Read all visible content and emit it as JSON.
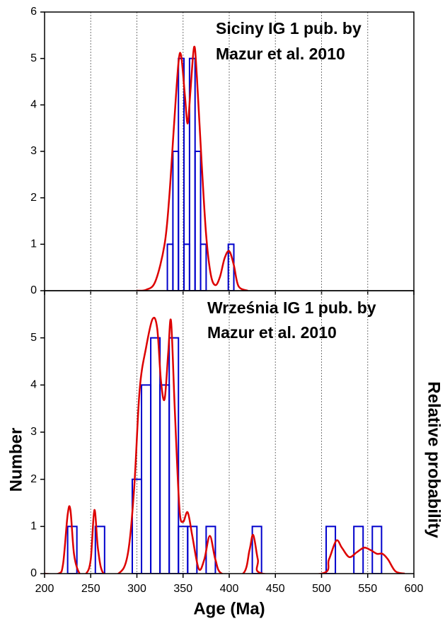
{
  "chart_data": [
    {
      "type": "histogram",
      "title_lines": [
        "Siciny IG 1 pub. by",
        "Mazur et al. 2010"
      ],
      "bins": [
        333,
        339,
        345,
        351,
        357,
        363,
        369,
        375,
        381,
        387,
        393,
        399,
        405
      ],
      "values": [
        1,
        3,
        5,
        1,
        5,
        3,
        1,
        0,
        0,
        0,
        0,
        1
      ],
      "color": "#0000cc",
      "curve": {
        "color": "#dd0000",
        "x": [
          300,
          310,
          320,
          330,
          335,
          340,
          345,
          348,
          352,
          355,
          358,
          362,
          365,
          370,
          375,
          380,
          385,
          390,
          395,
          400,
          405,
          410,
          420
        ],
        "y": [
          0,
          0.02,
          0.2,
          1.0,
          2.0,
          3.5,
          4.9,
          5.05,
          4.2,
          3.6,
          4.3,
          5.25,
          4.6,
          2.8,
          1.2,
          0.35,
          0.12,
          0.3,
          0.7,
          0.85,
          0.55,
          0.1,
          0
        ]
      },
      "xlim": [
        200,
        600
      ],
      "xticks": [
        200,
        250,
        300,
        350,
        400,
        450,
        500,
        550,
        600
      ],
      "ylim": [
        0,
        6
      ],
      "yticks": [
        0,
        1,
        2,
        3,
        4,
        5,
        6
      ],
      "grid": true
    },
    {
      "type": "histogram",
      "title_lines": [
        "Września IG 1 pub. by",
        "Mazur et al. 2010"
      ],
      "bins": [
        225,
        235,
        245,
        255,
        265,
        275,
        285,
        295,
        305,
        315,
        325,
        335,
        345,
        355,
        365,
        375,
        385,
        395,
        405,
        415,
        425,
        435,
        445,
        455,
        465,
        475,
        485,
        495,
        505,
        515,
        525,
        535,
        545,
        555,
        565,
        575
      ],
      "values": [
        1,
        0,
        0,
        1,
        0,
        0,
        0,
        2,
        4,
        5,
        4,
        5,
        1,
        1,
        0,
        1,
        0,
        0,
        0,
        0,
        1,
        0,
        0,
        0,
        0,
        0,
        0,
        0,
        1,
        0,
        0,
        1,
        0,
        1,
        0
      ],
      "color": "#0000cc",
      "curve": {
        "color": "#dd0000",
        "x": [
          200,
          215,
          220,
          225,
          228,
          232,
          238,
          245,
          250,
          254,
          258,
          264,
          280,
          290,
          297,
          303,
          310,
          317,
          322,
          326,
          330,
          334,
          337,
          341,
          346,
          350,
          355,
          360,
          367,
          373,
          379,
          385,
          392,
          415,
          422,
          426,
          431,
          436,
          500,
          508,
          516,
          522,
          530,
          538,
          546,
          553,
          560,
          566,
          572,
          580,
          590
        ],
        "y": [
          0,
          0,
          0.2,
          1.25,
          1.35,
          0.4,
          0,
          0,
          0.3,
          1.35,
          0.5,
          0,
          0,
          0.4,
          1.8,
          3.9,
          4.8,
          5.4,
          5.2,
          4.1,
          3.7,
          4.7,
          5.35,
          3.5,
          1.4,
          1.1,
          1.3,
          0.8,
          0.1,
          0.3,
          0.8,
          0.3,
          0,
          0,
          0.5,
          0.82,
          0.3,
          0,
          0,
          0.3,
          0.7,
          0.55,
          0.35,
          0.45,
          0.55,
          0.5,
          0.42,
          0.42,
          0.3,
          0.05,
          0
        ]
      },
      "xlim": [
        200,
        600
      ],
      "xticks": [
        200,
        250,
        300,
        350,
        400,
        450,
        500,
        550,
        600
      ],
      "ylim": [
        0,
        6
      ],
      "yticks": [
        0,
        1,
        2,
        3,
        4,
        5
      ],
      "grid": true,
      "xlabel": "Age (Ma)",
      "ylabel": "Number",
      "y2label": "Relative probability"
    }
  ]
}
